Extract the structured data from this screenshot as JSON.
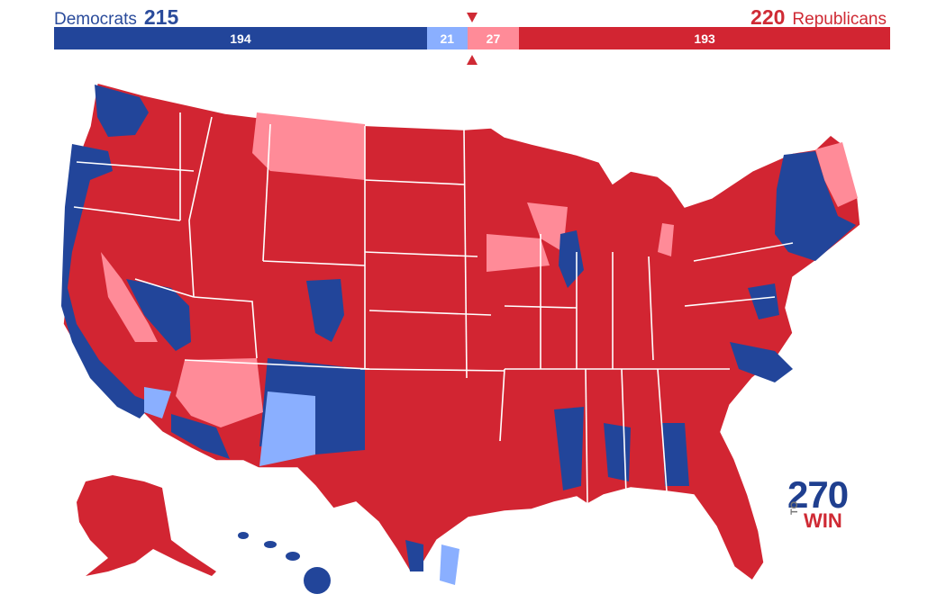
{
  "header": {
    "dem_name": "Democrats",
    "dem_total": "215",
    "rep_name": "Republicans",
    "rep_total": "220"
  },
  "bar": {
    "segments": [
      {
        "label": "194",
        "value": 194,
        "color": "#22459a",
        "name": "safe-democrat"
      },
      {
        "label": "21",
        "value": 21,
        "color": "#8aafff",
        "name": "lean-democrat"
      },
      {
        "label": "27",
        "value": 27,
        "color": "#ff8b98",
        "name": "lean-republican"
      },
      {
        "label": "193",
        "value": 193,
        "color": "#d22532",
        "name": "safe-republican"
      }
    ]
  },
  "colors": {
    "safe_dem": "#22459a",
    "lean_dem": "#8aafff",
    "lean_rep": "#ff8b98",
    "safe_rep": "#d22532"
  },
  "logo": {
    "number": "270",
    "to": "TO",
    "win": "WIN"
  }
}
